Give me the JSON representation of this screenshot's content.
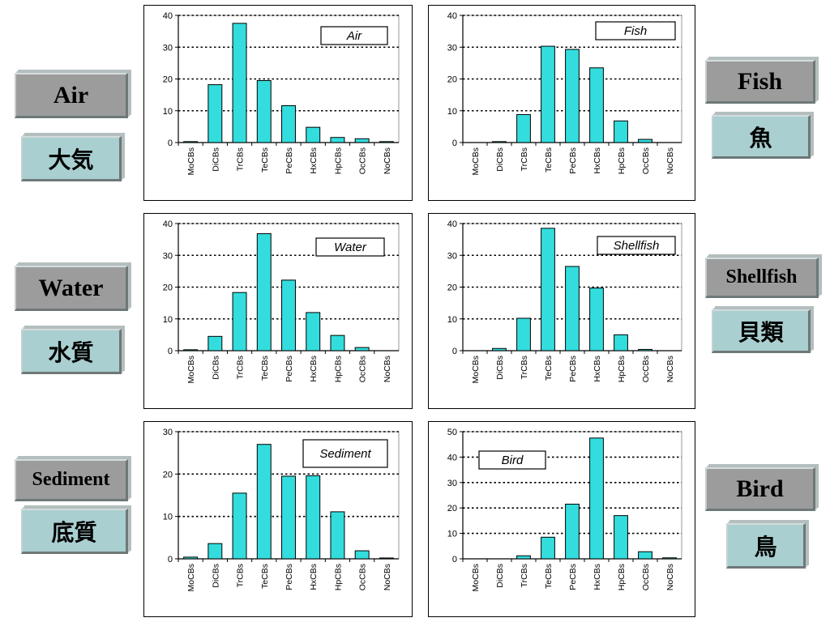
{
  "labels": {
    "air": {
      "en": "Air",
      "jp": "大気"
    },
    "water": {
      "en": "Water",
      "jp": "水質"
    },
    "sediment": {
      "en": "Sediment",
      "jp": "底質"
    },
    "fish": {
      "en": "Fish",
      "jp": "魚"
    },
    "shellfish": {
      "en": "Shellfish",
      "jp": "貝類"
    },
    "bird": {
      "en": "Bird",
      "jp": "鳥"
    }
  },
  "colors": {
    "bar": "#33dddd",
    "bar_edge": "#000000",
    "label_gray": "#9c9c9c",
    "label_teal": "#a9cfd0"
  },
  "chart_data": [
    {
      "id": "air",
      "type": "bar",
      "title": "Air",
      "categories": [
        "MoCBs",
        "DiCBs",
        "TrCBs",
        "TeCBs",
        "PeCBs",
        "HxCBs",
        "HpCBs",
        "OcCBs",
        "NoCBs"
      ],
      "values": [
        0.3,
        18.2,
        37.5,
        19.5,
        11.6,
        4.8,
        1.6,
        1.2,
        0.3
      ],
      "ylim": [
        0,
        40
      ],
      "yticks": [
        0,
        10,
        20,
        30,
        40
      ],
      "grid": true,
      "legend": "top-right"
    },
    {
      "id": "fish",
      "type": "bar",
      "title": "Fish",
      "categories": [
        "MoCBs",
        "DiCBs",
        "TrCBs",
        "TeCBs",
        "PeCBs",
        "HxCBs",
        "HpCBs",
        "OcCBs",
        "NoCBs"
      ],
      "values": [
        0,
        0.3,
        8.8,
        30.3,
        29.3,
        23.5,
        6.8,
        1.0,
        0
      ],
      "ylim": [
        0,
        40
      ],
      "yticks": [
        0,
        10,
        20,
        30,
        40
      ],
      "grid": true,
      "legend": "top-right"
    },
    {
      "id": "water",
      "type": "bar",
      "title": "Water",
      "categories": [
        "MoCBs",
        "DiCBs",
        "TrCBs",
        "TeCBs",
        "PeCBs",
        "HxCBs",
        "HpCBs",
        "OcCBs",
        "NoCBs"
      ],
      "values": [
        0.3,
        4.5,
        18.3,
        36.8,
        22.2,
        12.0,
        4.8,
        1.0,
        0
      ],
      "ylim": [
        0,
        40
      ],
      "yticks": [
        0,
        10,
        20,
        30,
        40
      ],
      "grid": true,
      "legend": "top-right"
    },
    {
      "id": "shellfish",
      "type": "bar",
      "title": "Shellfish",
      "categories": [
        "MoCBs",
        "DiCBs",
        "TrCBs",
        "TeCBs",
        "PeCBs",
        "HxCBs",
        "HpCBs",
        "OcCBs",
        "NoCBs"
      ],
      "values": [
        0,
        0.7,
        10.2,
        38.5,
        26.5,
        19.7,
        5.0,
        0.4,
        0
      ],
      "ylim": [
        0,
        40
      ],
      "yticks": [
        0,
        10,
        20,
        30,
        40
      ],
      "grid": true,
      "legend": "top-right"
    },
    {
      "id": "sediment",
      "type": "bar",
      "title": "Sediment",
      "categories": [
        "MoCBs",
        "DiCBs",
        "TrCBs",
        "TeCBs",
        "PeCBs",
        "HxCBs",
        "HpCBs",
        "OcCBs",
        "NoCBs"
      ],
      "values": [
        0.4,
        3.6,
        15.5,
        27.0,
        19.5,
        19.6,
        11.1,
        1.9,
        0.2
      ],
      "ylim": [
        0,
        30
      ],
      "yticks": [
        0,
        10,
        20,
        30
      ],
      "grid": true,
      "legend": "top-right"
    },
    {
      "id": "bird",
      "type": "bar",
      "title": "Bird",
      "categories": [
        "MoCBs",
        "DiCBs",
        "TrCBs",
        "TeCBs",
        "PeCBs",
        "HxCBs",
        "HpCBs",
        "OcCBs",
        "NoCBs"
      ],
      "values": [
        0,
        0,
        1.2,
        8.5,
        21.5,
        47.5,
        17.0,
        2.8,
        0.4
      ],
      "ylim": [
        0,
        50
      ],
      "yticks": [
        0,
        10,
        20,
        30,
        40,
        50
      ],
      "grid": true,
      "legend": "top-left"
    }
  ]
}
